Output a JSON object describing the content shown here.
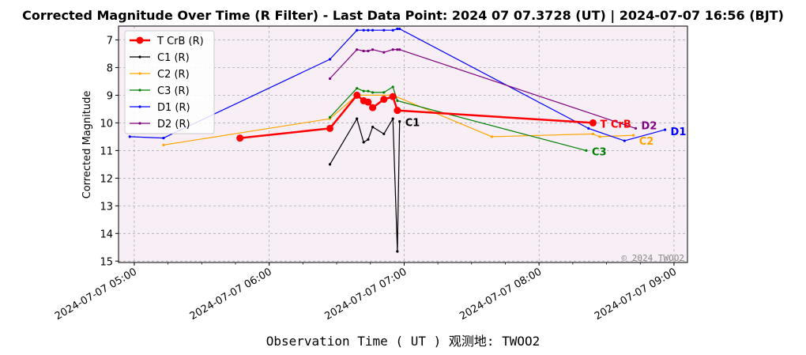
{
  "chart_data": {
    "type": "line",
    "title": "Corrected Magnitude Over Time (R Filter) - Last Data Point: 2024 07 07.3728 (UT) | 2024-07-07 16:56 (BJT)",
    "xlabel": "Observation Time ( UT )  观测地: TWOO2",
    "ylabel": "Corrected Magnitude",
    "watermark": "© 2024 TWOO2",
    "xlim": [
      "2024-07-07 04:53",
      "2024-07-07 09:06"
    ],
    "ylim": [
      15.05,
      6.5
    ],
    "y_inverted": true,
    "grid": true,
    "legend_position": "top-left",
    "plot_background": "#f7eef6",
    "x_ticks": [
      "2024-07-07 05:00",
      "2024-07-07 06:00",
      "2024-07-07 07:00",
      "2024-07-07 08:00",
      "2024-07-07 09:00"
    ],
    "x_tick_labels": [
      "2024-07-07 05:00",
      "2024-07-07 06:00",
      "2024-07-07 07:00",
      "2024-07-07 08:00",
      "2024-07-07 09:00"
    ],
    "y_ticks": [
      7,
      8,
      9,
      10,
      11,
      12,
      13,
      14,
      15
    ],
    "series": [
      {
        "name": "T CrB (R)",
        "end_label": "T CrB",
        "color": "#ff0000",
        "width": 2.5,
        "marker_r": 4.5,
        "x": [
          "2024-07-07 05:47",
          "2024-07-07 06:27",
          "2024-07-07 06:39",
          "2024-07-07 06:42",
          "2024-07-07 06:44",
          "2024-07-07 06:46",
          "2024-07-07 06:51",
          "2024-07-07 06:55",
          "2024-07-07 06:57",
          "2024-07-07 08:24"
        ],
        "y": [
          10.55,
          10.2,
          9.0,
          9.2,
          9.25,
          9.45,
          9.15,
          9.05,
          9.55,
          10.0
        ]
      },
      {
        "name": "C1 (R)",
        "end_label": "C1",
        "color": "#000000",
        "width": 1.2,
        "marker_r": 1.6,
        "x": [
          "2024-07-07 06:27",
          "2024-07-07 06:39",
          "2024-07-07 06:42",
          "2024-07-07 06:44",
          "2024-07-07 06:46",
          "2024-07-07 06:51",
          "2024-07-07 06:55",
          "2024-07-07 06:57",
          "2024-07-07 06:58"
        ],
        "y": [
          11.5,
          9.85,
          10.7,
          10.6,
          10.15,
          10.4,
          9.85,
          14.65,
          9.95
        ]
      },
      {
        "name": "C2 (R)",
        "end_label": "C2",
        "color": "#ffa500",
        "width": 1.2,
        "marker_r": 1.6,
        "x": [
          "2024-07-07 05:13",
          "2024-07-07 06:27",
          "2024-07-07 06:39",
          "2024-07-07 06:55",
          "2024-07-07 07:39",
          "2024-07-07 08:24",
          "2024-07-07 08:27",
          "2024-07-07 08:42"
        ],
        "y": [
          10.8,
          9.85,
          9.0,
          9.0,
          10.5,
          10.4,
          10.5,
          10.45
        ]
      },
      {
        "name": "C3 (R)",
        "end_label": "C3",
        "color": "#008000",
        "width": 1.2,
        "marker_r": 1.6,
        "x": [
          "2024-07-07 06:27",
          "2024-07-07 06:39",
          "2024-07-07 06:42",
          "2024-07-07 06:44",
          "2024-07-07 06:46",
          "2024-07-07 06:51",
          "2024-07-07 06:55",
          "2024-07-07 06:57",
          "2024-07-07 08:21"
        ],
        "y": [
          9.8,
          8.75,
          8.85,
          8.85,
          8.9,
          8.9,
          8.7,
          9.2,
          11.0
        ]
      },
      {
        "name": "D1 (R)",
        "end_label": "D1",
        "color": "#0000ff",
        "width": 1.2,
        "marker_r": 1.6,
        "x": [
          "2024-07-07 04:58",
          "2024-07-07 05:13",
          "2024-07-07 06:27",
          "2024-07-07 06:39",
          "2024-07-07 06:42",
          "2024-07-07 06:44",
          "2024-07-07 06:46",
          "2024-07-07 06:51",
          "2024-07-07 06:55",
          "2024-07-07 06:57",
          "2024-07-07 06:58",
          "2024-07-07 08:22",
          "2024-07-07 08:38",
          "2024-07-07 08:56"
        ],
        "y": [
          10.5,
          10.55,
          7.7,
          6.65,
          6.65,
          6.65,
          6.65,
          6.65,
          6.65,
          6.6,
          6.6,
          10.2,
          10.65,
          10.25
        ]
      },
      {
        "name": "D2 (R)",
        "end_label": "D2",
        "color": "#800080",
        "width": 1.2,
        "marker_r": 1.6,
        "x": [
          "2024-07-07 06:27",
          "2024-07-07 06:39",
          "2024-07-07 06:42",
          "2024-07-07 06:44",
          "2024-07-07 06:46",
          "2024-07-07 06:51",
          "2024-07-07 06:55",
          "2024-07-07 06:57",
          "2024-07-07 06:58",
          "2024-07-07 08:43"
        ],
        "y": [
          8.4,
          7.35,
          7.4,
          7.4,
          7.35,
          7.45,
          7.35,
          7.35,
          7.35,
          10.2
        ]
      }
    ]
  }
}
